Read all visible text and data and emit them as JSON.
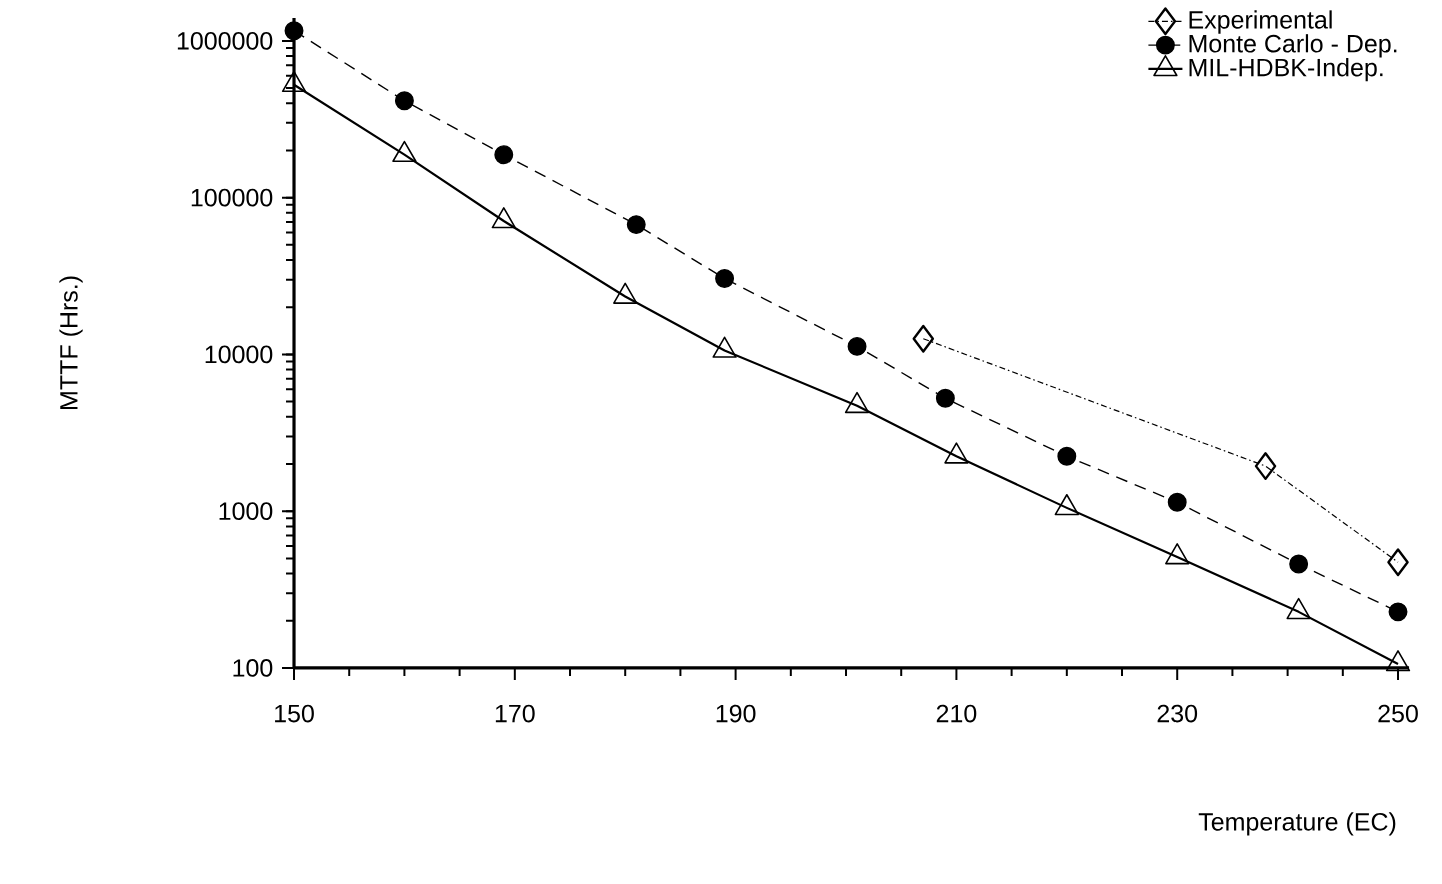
{
  "chart_data": {
    "type": "line",
    "xlabel": "Temperature (EC)",
    "ylabel": "MTTF (Hrs.)",
    "log": "y",
    "legend": "top right",
    "grid": false,
    "xlim": [
      150,
      251
    ],
    "xticks": [
      150,
      170,
      190,
      210,
      230,
      250
    ],
    "ylim": [
      100,
      1400000
    ],
    "yticks": [
      100,
      1000,
      10000,
      100000,
      1000000
    ],
    "series": [
      {
        "name": "Experimental",
        "color": "#000000",
        "marker": "diamond",
        "line_style": "dotted",
        "x": [
          207,
          238,
          250
        ],
        "values": [
          12600,
          1940,
          473
        ]
      },
      {
        "name": "Monte Carlo - Dep.",
        "color": "#000000",
        "marker": "circle",
        "line_style": "dashed",
        "x": [
          150,
          160,
          169,
          181,
          189,
          201,
          209,
          220,
          230,
          241,
          250
        ],
        "values": [
          1160000,
          415000,
          188000,
          67300,
          30500,
          11250,
          5250,
          2240,
          1140,
          460,
          228
        ]
      },
      {
        "name": "MIL-HDBK-Indep.",
        "color": "#000000",
        "marker": "triangle",
        "line_style": "solid",
        "x": [
          150,
          160,
          169,
          180,
          189,
          201,
          210,
          220,
          230,
          241,
          250
        ],
        "values": [
          525000,
          188000,
          71000,
          23400,
          10600,
          4700,
          2240,
          1050,
          510,
          228,
          106
        ]
      }
    ]
  }
}
